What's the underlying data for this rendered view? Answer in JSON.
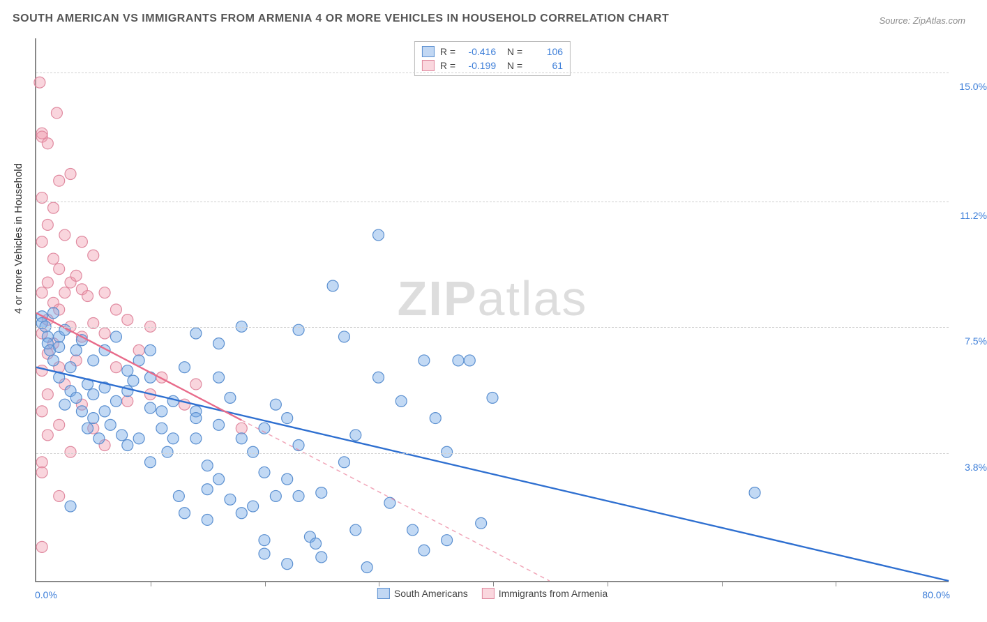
{
  "title": "SOUTH AMERICAN VS IMMIGRANTS FROM ARMENIA 4 OR MORE VEHICLES IN HOUSEHOLD CORRELATION CHART",
  "source": "Source: ZipAtlas.com",
  "watermark_bold": "ZIP",
  "watermark_light": "atlas",
  "ylabel": "4 or more Vehicles in Household",
  "chart": {
    "type": "scatter",
    "xlim": [
      0,
      80
    ],
    "ylim": [
      0,
      16
    ],
    "xaxis_min_label": "0.0%",
    "xaxis_max_label": "80.0%",
    "ytick_labels": [
      "3.8%",
      "7.5%",
      "11.2%",
      "15.0%"
    ],
    "ytick_values": [
      3.8,
      7.5,
      11.2,
      15.0
    ],
    "xtick_values": [
      10,
      20,
      30,
      40,
      50,
      60,
      70
    ],
    "grid_color": "#d0d0d0",
    "background_color": "#ffffff",
    "axis_color": "#888888",
    "tick_label_color": "#3b7dd8",
    "marker_radius": 8,
    "marker_stroke_width": 1.2,
    "trend_line_width": 2.4,
    "series": [
      {
        "name": "South Americans",
        "key": "south_americans",
        "fill": "rgba(120,170,230,0.45)",
        "stroke": "#5a8fd0",
        "line_color": "#2e6fd0",
        "line_dashed": false,
        "R": "-0.416",
        "N": "106",
        "trend": {
          "x1": 0,
          "y1": 6.3,
          "x2": 80,
          "y2": 0.0
        },
        "points": [
          [
            0.5,
            7.8
          ],
          [
            0.5,
            7.6
          ],
          [
            0.8,
            7.5
          ],
          [
            1,
            7.2
          ],
          [
            1,
            7.0
          ],
          [
            1.5,
            7.9
          ],
          [
            1.2,
            6.8
          ],
          [
            1.5,
            6.5
          ],
          [
            2,
            6.9
          ],
          [
            2,
            7.2
          ],
          [
            2,
            6.0
          ],
          [
            2.5,
            7.4
          ],
          [
            2.5,
            5.2
          ],
          [
            3,
            6.3
          ],
          [
            3,
            5.6
          ],
          [
            3,
            2.2
          ],
          [
            3.5,
            6.8
          ],
          [
            3.5,
            5.4
          ],
          [
            4,
            7.1
          ],
          [
            4,
            5.0
          ],
          [
            4.5,
            5.8
          ],
          [
            4.5,
            4.5
          ],
          [
            5,
            6.5
          ],
          [
            5,
            5.5
          ],
          [
            5,
            4.8
          ],
          [
            5.5,
            4.2
          ],
          [
            6,
            6.8
          ],
          [
            6,
            5.7
          ],
          [
            6,
            5.0
          ],
          [
            6.5,
            4.6
          ],
          [
            7,
            7.2
          ],
          [
            7,
            5.3
          ],
          [
            7.5,
            4.3
          ],
          [
            8,
            6.2
          ],
          [
            8,
            5.6
          ],
          [
            8,
            4.0
          ],
          [
            8.5,
            5.9
          ],
          [
            9,
            6.5
          ],
          [
            9,
            4.2
          ],
          [
            10,
            6.8
          ],
          [
            10,
            6.0
          ],
          [
            10,
            5.1
          ],
          [
            10,
            3.5
          ],
          [
            11,
            5.0
          ],
          [
            11,
            4.5
          ],
          [
            11.5,
            3.8
          ],
          [
            12,
            5.3
          ],
          [
            12,
            4.2
          ],
          [
            12.5,
            2.5
          ],
          [
            13,
            6.3
          ],
          [
            13,
            2.0
          ],
          [
            14,
            7.3
          ],
          [
            14,
            5.0
          ],
          [
            14,
            4.2
          ],
          [
            14,
            4.8
          ],
          [
            15,
            3.4
          ],
          [
            15,
            2.7
          ],
          [
            15,
            1.8
          ],
          [
            16,
            7.0
          ],
          [
            16,
            4.6
          ],
          [
            16,
            3.0
          ],
          [
            17,
            5.4
          ],
          [
            17,
            2.4
          ],
          [
            18,
            7.5
          ],
          [
            18,
            4.2
          ],
          [
            18,
            2.0
          ],
          [
            19,
            3.8
          ],
          [
            19,
            2.2
          ],
          [
            20,
            4.5
          ],
          [
            20,
            3.2
          ],
          [
            20,
            1.2
          ],
          [
            20,
            0.8
          ],
          [
            21,
            5.2
          ],
          [
            21,
            2.5
          ],
          [
            22,
            3.0
          ],
          [
            22,
            0.5
          ],
          [
            23,
            7.4
          ],
          [
            23,
            4.0
          ],
          [
            23,
            2.5
          ],
          [
            24,
            1.3
          ],
          [
            24.5,
            1.1
          ],
          [
            25,
            2.6
          ],
          [
            25,
            0.7
          ],
          [
            26,
            8.7
          ],
          [
            27,
            7.2
          ],
          [
            27,
            3.5
          ],
          [
            28,
            4.3
          ],
          [
            28,
            1.5
          ],
          [
            29,
            0.4
          ],
          [
            30,
            6.0
          ],
          [
            31,
            2.3
          ],
          [
            32,
            5.3
          ],
          [
            33,
            1.5
          ],
          [
            34,
            6.5
          ],
          [
            35,
            4.8
          ],
          [
            36,
            3.8
          ],
          [
            37,
            6.5
          ],
          [
            38,
            6.5
          ],
          [
            39,
            1.7
          ],
          [
            40,
            5.4
          ],
          [
            30,
            10.2
          ],
          [
            34,
            0.9
          ],
          [
            36,
            1.2
          ],
          [
            63,
            2.6
          ],
          [
            22,
            4.8
          ],
          [
            16,
            6.0
          ]
        ]
      },
      {
        "name": "Immigrants from Armenia",
        "key": "immigrants_armenia",
        "fill": "rgba(240,150,170,0.40)",
        "stroke": "#e08aa0",
        "line_color": "#e86b8a",
        "line_dashed": true,
        "dashed_from_x": 18,
        "R": "-0.199",
        "N": "61",
        "trend": {
          "x1": 0,
          "y1": 7.9,
          "x2": 45,
          "y2": 0.0
        },
        "points": [
          [
            0.3,
            14.7
          ],
          [
            0.5,
            13.2
          ],
          [
            0.5,
            13.1
          ],
          [
            0.5,
            11.3
          ],
          [
            0.5,
            10.0
          ],
          [
            0.5,
            8.5
          ],
          [
            0.5,
            7.3
          ],
          [
            0.5,
            6.2
          ],
          [
            0.5,
            5.0
          ],
          [
            0.5,
            3.5
          ],
          [
            0.5,
            3.2
          ],
          [
            0.5,
            1.0
          ],
          [
            1,
            12.9
          ],
          [
            1,
            10.5
          ],
          [
            1,
            8.8
          ],
          [
            1,
            7.7
          ],
          [
            1,
            6.7
          ],
          [
            1,
            5.5
          ],
          [
            1,
            4.3
          ],
          [
            1.5,
            11.0
          ],
          [
            1.5,
            9.5
          ],
          [
            1.5,
            8.2
          ],
          [
            1.5,
            7.0
          ],
          [
            1.8,
            13.8
          ],
          [
            2,
            11.8
          ],
          [
            2,
            9.2
          ],
          [
            2,
            8.0
          ],
          [
            2,
            6.3
          ],
          [
            2,
            4.6
          ],
          [
            2,
            2.5
          ],
          [
            2.5,
            10.2
          ],
          [
            2.5,
            8.5
          ],
          [
            2.5,
            5.8
          ],
          [
            3,
            12.0
          ],
          [
            3,
            8.8
          ],
          [
            3,
            7.5
          ],
          [
            3,
            3.8
          ],
          [
            3.5,
            9.0
          ],
          [
            3.5,
            6.5
          ],
          [
            4,
            10.0
          ],
          [
            4,
            8.6
          ],
          [
            4,
            7.2
          ],
          [
            4,
            5.2
          ],
          [
            4.5,
            8.4
          ],
          [
            5,
            9.6
          ],
          [
            5,
            7.6
          ],
          [
            5,
            4.5
          ],
          [
            6,
            8.5
          ],
          [
            6,
            7.3
          ],
          [
            6,
            4.0
          ],
          [
            7,
            8.0
          ],
          [
            7,
            6.3
          ],
          [
            8,
            7.7
          ],
          [
            8,
            5.3
          ],
          [
            9,
            6.8
          ],
          [
            10,
            7.5
          ],
          [
            10,
            5.5
          ],
          [
            11,
            6.0
          ],
          [
            13,
            5.2
          ],
          [
            14,
            5.8
          ],
          [
            18,
            4.5
          ]
        ]
      }
    ],
    "legend_bottom": [
      {
        "label": "South Americans",
        "swatch": "blue"
      },
      {
        "label": "Immigrants from Armenia",
        "swatch": "pink"
      }
    ]
  }
}
